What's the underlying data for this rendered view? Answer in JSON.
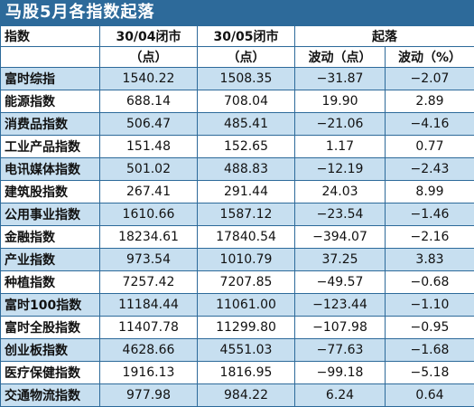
{
  "title": "马股5月各指数起落",
  "headers": {
    "index": "指数",
    "d1": "30/04闭市",
    "d2": "30/05闭市",
    "change": "起落",
    "unit_pt": "（点）",
    "unit_pt2": "（点）",
    "vol_pt": "波动（点）",
    "vol_pct": "波动（%）"
  },
  "rows": [
    {
      "name": "富时综指",
      "apr": "1540.22",
      "may": "1508.35",
      "pts": "−31.87",
      "pct": "−2.07"
    },
    {
      "name": "能源指数",
      "apr": "688.14",
      "may": "708.04",
      "pts": "19.90",
      "pct": "2.89"
    },
    {
      "name": "消费品指数",
      "apr": "506.47",
      "may": "485.41",
      "pts": "−21.06",
      "pct": "−4.16"
    },
    {
      "name": "工业产品指数",
      "apr": "151.48",
      "may": "152.65",
      "pts": "1.17",
      "pct": "0.77"
    },
    {
      "name": "电讯媒体指数",
      "apr": "501.02",
      "may": "488.83",
      "pts": "−12.19",
      "pct": "−2.43"
    },
    {
      "name": "建筑股指数",
      "apr": "267.41",
      "may": "291.44",
      "pts": "24.03",
      "pct": "8.99"
    },
    {
      "name": "公用事业指数",
      "apr": "1610.66",
      "may": "1587.12",
      "pts": "−23.54",
      "pct": "−1.46"
    },
    {
      "name": "金融指数",
      "apr": "18234.61",
      "may": "17840.54",
      "pts": "−394.07",
      "pct": "−2.16"
    },
    {
      "name": "产业指数",
      "apr": "973.54",
      "may": "1010.79",
      "pts": "37.25",
      "pct": "3.83"
    },
    {
      "name": "种植指数",
      "apr": "7257.42",
      "may": "7207.85",
      "pts": "−49.57",
      "pct": "−0.68"
    },
    {
      "name": "富时100指数",
      "apr": "11184.44",
      "may": "11061.00",
      "pts": "−123.44",
      "pct": "−1.10"
    },
    {
      "name": "富时全股指数",
      "apr": "11407.78",
      "may": "11299.80",
      "pts": "−107.98",
      "pct": "−0.95"
    },
    {
      "name": "创业板指数",
      "apr": "4628.66",
      "may": "4551.03",
      "pts": "−77.63",
      "pct": "−1.68"
    },
    {
      "name": "医疗保健指数",
      "apr": "1916.13",
      "may": "1816.95",
      "pts": "−99.18",
      "pct": "−5.18"
    },
    {
      "name": "交通物流指数",
      "apr": "977.98",
      "may": "984.22",
      "pts": "6.24",
      "pct": "0.64"
    }
  ],
  "colors": {
    "accent": "#2d6a9a",
    "alt_row": "#c7dff0"
  }
}
